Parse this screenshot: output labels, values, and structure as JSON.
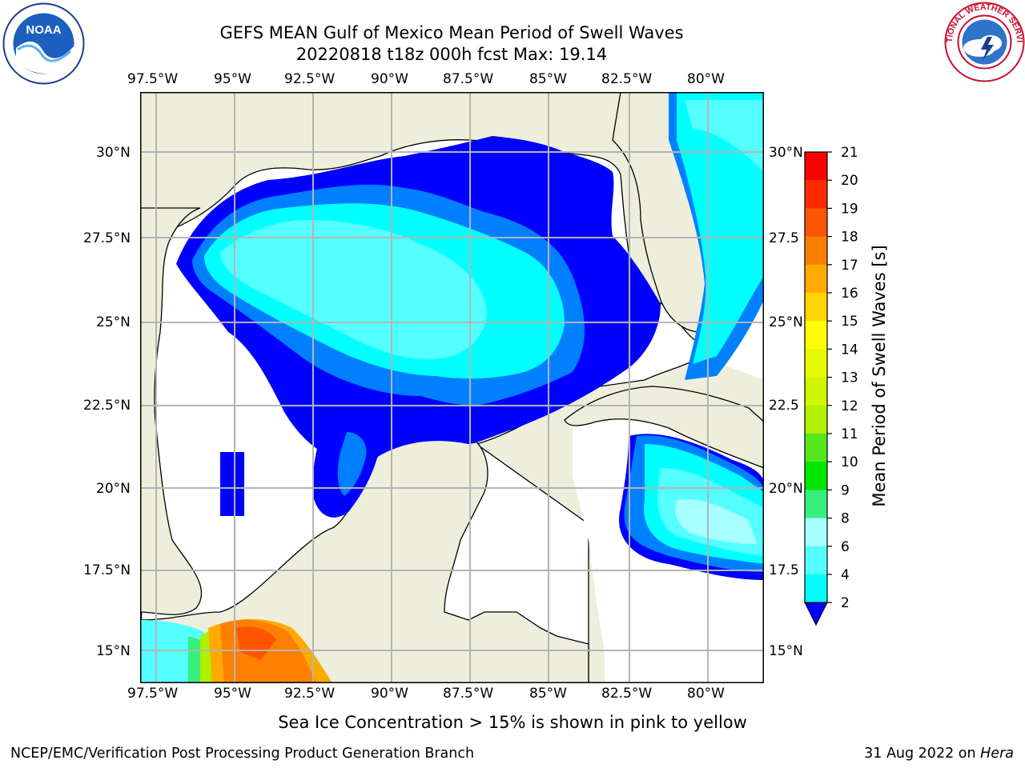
{
  "title_line1": "GEFS MEAN Gulf of Mexico Mean Period of Swell Waves",
  "title_line2": "20220818 t18z 000h fcst   Max: 19.14",
  "lon_labels": [
    "97.5°W",
    "95°W",
    "92.5°W",
    "90°W",
    "87.5°W",
    "85°W",
    "82.5°W",
    "80°W"
  ],
  "lat_labels_left": [
    "30°N",
    "27.5°N",
    "25°N",
    "22.5°N",
    "20°N",
    "17.5°N",
    "15°N"
  ],
  "lat_labels_right": [
    "30°N",
    "27.5",
    "25°N",
    "22.5",
    "20°N",
    "17.5",
    "15°N"
  ],
  "colorbar": {
    "title": "Mean Period of Swell Waves [s]",
    "ticks": [
      "21",
      "20",
      "19",
      "18",
      "17",
      "16",
      "15",
      "14",
      "13",
      "12",
      "11",
      "10",
      "9",
      "8",
      "6",
      "4",
      "2"
    ],
    "colors": [
      "#ff0000",
      "#ff2a00",
      "#ff5500",
      "#ff7f00",
      "#ffaa00",
      "#ffd400",
      "#ffff00",
      "#e6fa00",
      "#d0f500",
      "#b0f000",
      "#55e61e",
      "#00e600",
      "#35f07c",
      "#a8ffff",
      "#55ffff",
      "#00ffff",
      "#0080ff",
      "#0000ff"
    ]
  },
  "sea_ice_note": "Sea Ice Concentration > 15% is shown in pink to yellow",
  "footer_left": "NCEP/EMC/Verification Post Processing Product Generation Branch",
  "footer_date": "31 Aug 2022 on ",
  "footer_machine": "Hera",
  "logos": {
    "left_text": "NOAA",
    "right_text": "NATIONAL WEATHER SERVICE"
  },
  "colors": {
    "land": "#eeeedd",
    "grid": "#b4b4b4"
  }
}
